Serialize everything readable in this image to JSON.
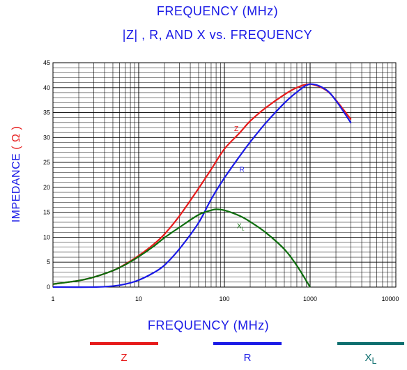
{
  "chart_data": {
    "type": "line",
    "title": "FREQUENCY (MHz)",
    "subtitle": "|Z| , R, AND X vs. FREQUENCY",
    "xlabel": "FREQUENCY (MHz)",
    "ylabel": "IMPEDANCE",
    "ylabel_unit": "( Ω )",
    "x_scale": "log",
    "xlim": [
      1,
      10000
    ],
    "ylim": [
      0,
      45
    ],
    "grid": true,
    "x_ticks": [
      "1",
      "10",
      "100",
      "1000",
      "10000"
    ],
    "x_tick_values": [
      1,
      10,
      100,
      1000,
      10000
    ],
    "y_ticks": [
      "0",
      "5",
      "10",
      "15",
      "20",
      "25",
      "30",
      "35",
      "40",
      "45"
    ],
    "y_tick_values": [
      0,
      5,
      10,
      15,
      20,
      25,
      30,
      35,
      40,
      45
    ],
    "series": [
      {
        "name": "Z",
        "color": "#e61a1a",
        "x": [
          1,
          2,
          3,
          5,
          7,
          10,
          15,
          20,
          30,
          50,
          70,
          100,
          150,
          200,
          300,
          500,
          700,
          1000,
          1500,
          2000,
          3000
        ],
        "y": [
          0.6,
          1.3,
          2.0,
          3.3,
          4.6,
          6.3,
          8.6,
          10.6,
          14.3,
          19.8,
          23.6,
          27.7,
          30.9,
          33.3,
          35.9,
          38.6,
          40.0,
          40.7,
          39.6,
          37.5,
          33.6
        ]
      },
      {
        "name": "R",
        "color": "#1a1ae6",
        "x": [
          1,
          3,
          5,
          7,
          10,
          15,
          20,
          30,
          50,
          70,
          100,
          150,
          200,
          300,
          500,
          700,
          1000,
          1500,
          2000,
          3000
        ],
        "y": [
          0,
          0,
          0.2,
          0.6,
          1.4,
          2.9,
          4.4,
          7.7,
          12.9,
          17.6,
          21.9,
          26.2,
          29.1,
          32.8,
          36.9,
          39.1,
          40.7,
          39.7,
          37.4,
          32.9
        ]
      },
      {
        "name": "X",
        "color": "#0d6e0d",
        "x": [
          1,
          2,
          3,
          5,
          7,
          10,
          15,
          20,
          30,
          50,
          70,
          80,
          100,
          150,
          200,
          300,
          500,
          700,
          1000
        ],
        "y": [
          0.6,
          1.3,
          2.0,
          3.3,
          4.5,
          6.1,
          8.2,
          9.9,
          12.0,
          14.5,
          15.4,
          15.6,
          15.4,
          14.3,
          13.1,
          11.0,
          7.6,
          4.3,
          0
        ]
      }
    ],
    "annotations": [
      {
        "text": "Z",
        "x": 130,
        "y": 31.3,
        "color": "#e61a1a"
      },
      {
        "text": "R",
        "x": 150,
        "y": 23.1,
        "color": "#1a1ae6"
      },
      {
        "text": "X",
        "sub": "L",
        "x": 140,
        "y": 11.8,
        "color": "#0d6e0d"
      }
    ],
    "legend": {
      "placement": "bottom",
      "items": [
        {
          "label": "Z",
          "color": "#e61a1a"
        },
        {
          "label": "R",
          "color": "#1a1ae6"
        },
        {
          "label": "X",
          "sub": "L",
          "color": "#0d6e0d"
        }
      ]
    }
  }
}
